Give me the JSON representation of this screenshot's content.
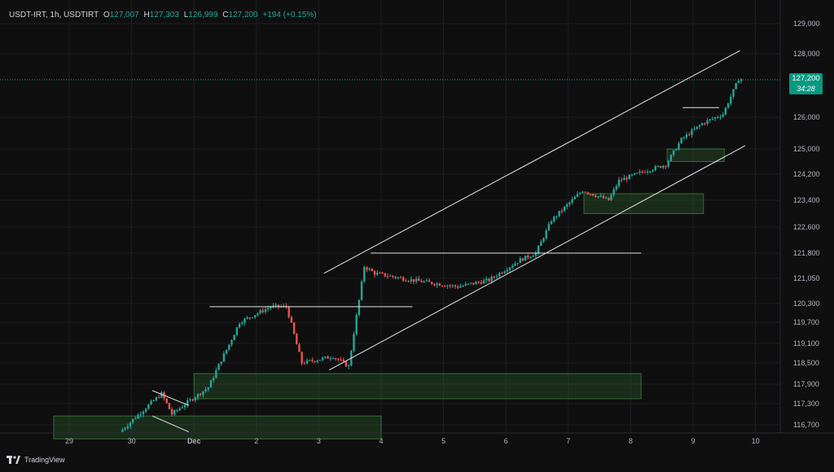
{
  "legend": {
    "symbol": "USDT-IRT, 1h, USDTIRT",
    "o_label": "O",
    "o": "127,007",
    "h_label": "H",
    "h": "127,303",
    "l_label": "L",
    "l": "126,999",
    "c_label": "C",
    "c": "127,200",
    "change": "+194 (+0.15%)"
  },
  "last_price": {
    "value": "127,200",
    "countdown": "34:28"
  },
  "brand": {
    "name": "TradingView"
  },
  "colors": {
    "up": "#26a69a",
    "down": "#ef5350",
    "zone_fill": "#4caf50",
    "line": "#e6e6e6",
    "background": "#0f0f0f"
  },
  "chart_data": {
    "type": "candlestick",
    "y_tick_labels": [
      "129,000",
      "128,000",
      "126,000",
      "125,000",
      "124,200",
      "123,400",
      "122,600",
      "121,800",
      "121,050",
      "120,300",
      "119,700",
      "119,100",
      "118,500",
      "117,900",
      "117,300",
      "116,700"
    ],
    "x_tick_labels": [
      "29",
      "30",
      "Dec",
      "2",
      "3",
      "4",
      "5",
      "6",
      "7",
      "8",
      "9",
      "10"
    ],
    "x_range": [
      "Nov 28 18:00",
      "Dec 10 12:00"
    ],
    "grid": true,
    "price_series_approx": [
      [
        "Nov 29 20:00",
        116500
      ],
      [
        "Nov 30 12:00",
        117600
      ],
      [
        "Nov 30 16:00",
        117000
      ],
      [
        "Dec 1 06:00",
        117800
      ],
      [
        "Dec 1 18:00",
        119700
      ],
      [
        "Dec 2 06:00",
        120200
      ],
      [
        "Dec 2 12:00",
        120200
      ],
      [
        "Dec 2 18:00",
        118500
      ],
      [
        "Dec 3 06:00",
        118700
      ],
      [
        "Dec 3 12:00",
        118400
      ],
      [
        "Dec 3 18:00",
        121400
      ],
      [
        "Dec 3 22:00",
        121200
      ],
      [
        "Dec 4 12:00",
        121000
      ],
      [
        "Dec 5 06:00",
        120800
      ],
      [
        "Dec 5 18:00",
        121000
      ],
      [
        "Dec 6 06:00",
        121600
      ],
      [
        "Dec 6 12:00",
        121800
      ],
      [
        "Dec 6 18:00",
        122800
      ],
      [
        "Dec 7 06:00",
        123700
      ],
      [
        "Dec 7 16:00",
        123400
      ],
      [
        "Dec 7 20:00",
        124000
      ],
      [
        "Dec 8 06:00",
        124300
      ],
      [
        "Dec 8 14:00",
        124500
      ],
      [
        "Dec 8 20:00",
        125300
      ],
      [
        "Dec 9 04:00",
        125800
      ],
      [
        "Dec 9 12:00",
        126100
      ],
      [
        "Dec 9 18:00",
        127200
      ]
    ],
    "annotations": {
      "horizontal_lines": [
        {
          "price": 120200,
          "from": "Dec 1 06:00",
          "to": "Dec 4 12:00"
        },
        {
          "price": 121800,
          "from": "Dec 3 20:00",
          "to": "Dec 8 04:00"
        },
        {
          "price": 126300,
          "from": "Dec 8 20:00",
          "to": "Dec 9 10:00"
        }
      ],
      "channel_lines": [
        {
          "from": [
            "Dec 3 02:00",
            121200
          ],
          "to": [
            "Dec 9 18:00",
            128100
          ]
        },
        {
          "from": [
            "Dec 3 04:00",
            118300
          ],
          "to": [
            "Dec 9 20:00",
            125100
          ]
        }
      ],
      "flag_lines": [
        {
          "from": [
            "Nov 30 08:00",
            117700
          ],
          "to": [
            "Nov 30 22:00",
            117250
          ]
        },
        {
          "from": [
            "Nov 30 08:00",
            116950
          ],
          "to": [
            "Nov 30 22:00",
            116500
          ]
        }
      ],
      "zones": [
        {
          "from": "Nov 28 18:00",
          "to": "Dec 4 00:00",
          "top": 116950,
          "bottom": 116300
        },
        {
          "from": "Dec 1 00:00",
          "to": "Dec 8 04:00",
          "top": 118200,
          "bottom": 117450
        },
        {
          "from": "Dec 7 06:00",
          "to": "Dec 9 04:00",
          "top": 123600,
          "bottom": 123000
        },
        {
          "from": "Dec 8 14:00",
          "to": "Dec 9 12:00",
          "top": 125000,
          "bottom": 124600
        }
      ]
    }
  }
}
